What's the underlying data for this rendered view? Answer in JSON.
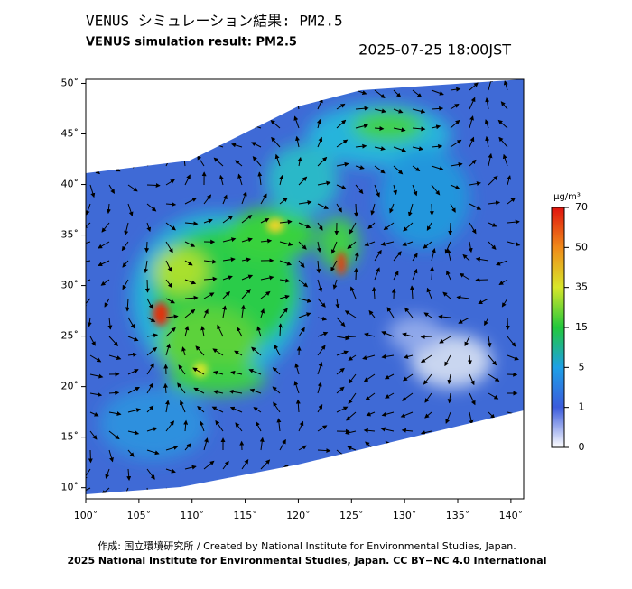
{
  "header": {
    "title_ja": "VENUS シミュレーション結果: PM2.5",
    "title_en": "VENUS simulation result: PM2.5",
    "datetime": "2025-07-25 18:00JST"
  },
  "map": {
    "xlim": [
      100,
      141.2
    ],
    "ylim": [
      8.9,
      50.4
    ],
    "xticks": [
      {
        "value": 100,
        "label": "100˚"
      },
      {
        "value": 105,
        "label": "105˚"
      },
      {
        "value": 110,
        "label": "110˚"
      },
      {
        "value": 115,
        "label": "115˚"
      },
      {
        "value": 120,
        "label": "120˚"
      },
      {
        "value": 125,
        "label": "125˚"
      },
      {
        "value": 130,
        "label": "130˚"
      },
      {
        "value": 135,
        "label": "135˚"
      },
      {
        "value": 140,
        "label": "140˚"
      }
    ],
    "yticks": [
      {
        "value": 10,
        "label": "10˚"
      },
      {
        "value": 15,
        "label": "15˚"
      },
      {
        "value": 20,
        "label": "20˚"
      },
      {
        "value": 25,
        "label": "25˚"
      },
      {
        "value": 30,
        "label": "30˚"
      },
      {
        "value": 35,
        "label": "35˚"
      },
      {
        "value": 40,
        "label": "40˚"
      },
      {
        "value": 45,
        "label": "45˚"
      },
      {
        "value": 50,
        "label": "50˚"
      }
    ]
  },
  "colorbar": {
    "unit": "μg/m³",
    "ticks": [
      0,
      1,
      5,
      15,
      35,
      50,
      70
    ],
    "colors": [
      "#ffffff",
      "#3b5bdc",
      "#1ea0e6",
      "#22c83c",
      "#d8e62a",
      "#f08a1a",
      "#e0140e"
    ]
  },
  "footer": {
    "credit": "作成: 国立環境研究所 / Created by National Institute for Environmental Studies, Japan.",
    "license": "2025 National Institute for Environmental Studies, Japan. CC BY−NC 4.0 International"
  }
}
